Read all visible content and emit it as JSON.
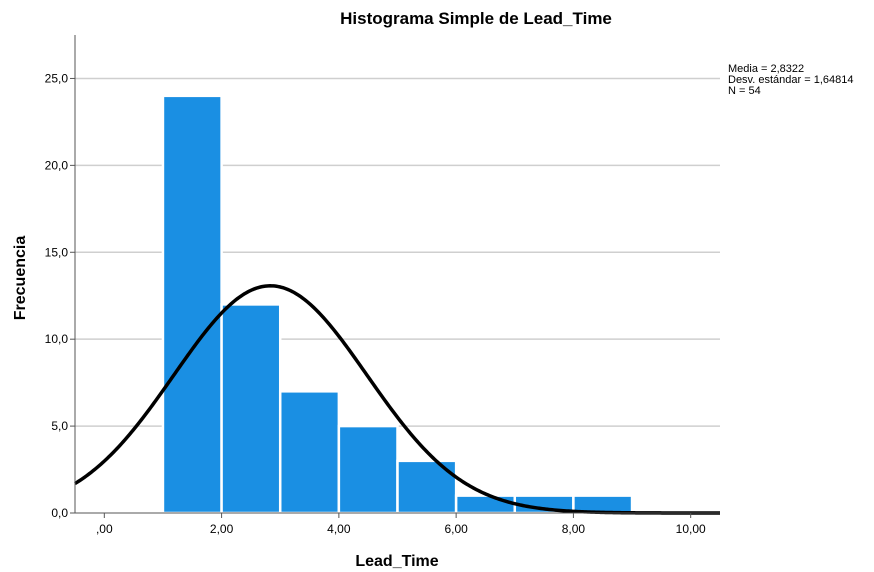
{
  "chart_data": {
    "type": "bar",
    "title": "Histograma Simple de Lead_Time",
    "xlabel": "Lead_Time",
    "ylabel": "Frecuencia",
    "bins": [
      {
        "x0": 1,
        "x1": 2,
        "count": 24
      },
      {
        "x0": 2,
        "x1": 3,
        "count": 12
      },
      {
        "x0": 3,
        "x1": 4,
        "count": 7
      },
      {
        "x0": 4,
        "x1": 5,
        "count": 5
      },
      {
        "x0": 5,
        "x1": 6,
        "count": 3
      },
      {
        "x0": 6,
        "x1": 7,
        "count": 1
      },
      {
        "x0": 7,
        "x1": 8,
        "count": 1
      },
      {
        "x0": 8,
        "x1": 9,
        "count": 1
      }
    ],
    "xlim": [
      -0.5,
      10.5
    ],
    "ylim": [
      0,
      27.5
    ],
    "xticks": [
      {
        "value": 0,
        "label": ",00"
      },
      {
        "value": 2,
        "label": "2,00"
      },
      {
        "value": 4,
        "label": "4,00"
      },
      {
        "value": 6,
        "label": "6,00"
      },
      {
        "value": 8,
        "label": "8,00"
      },
      {
        "value": 10,
        "label": "10,00"
      }
    ],
    "yticks": [
      {
        "value": 0,
        "label": "0,0"
      },
      {
        "value": 5,
        "label": "5,0"
      },
      {
        "value": 10,
        "label": "10,0"
      },
      {
        "value": 15,
        "label": "15,0"
      },
      {
        "value": 20,
        "label": "20,0"
      },
      {
        "value": 25,
        "label": "25,0"
      }
    ],
    "normal_curve": {
      "mean": 2.8322,
      "sd": 1.64814,
      "n": 54,
      "bin_width": 1
    },
    "stats": {
      "mean_text": "Media = 2,8322",
      "sd_text": "Desv. estándar = 1,64814",
      "n_text": "N = 54"
    },
    "grid": true,
    "colors": {
      "bar": "#1a8fe3",
      "bar_edge": "#ffffff",
      "curve": "#000000",
      "grid": "#cfcfcf",
      "axis": "#555555"
    }
  }
}
